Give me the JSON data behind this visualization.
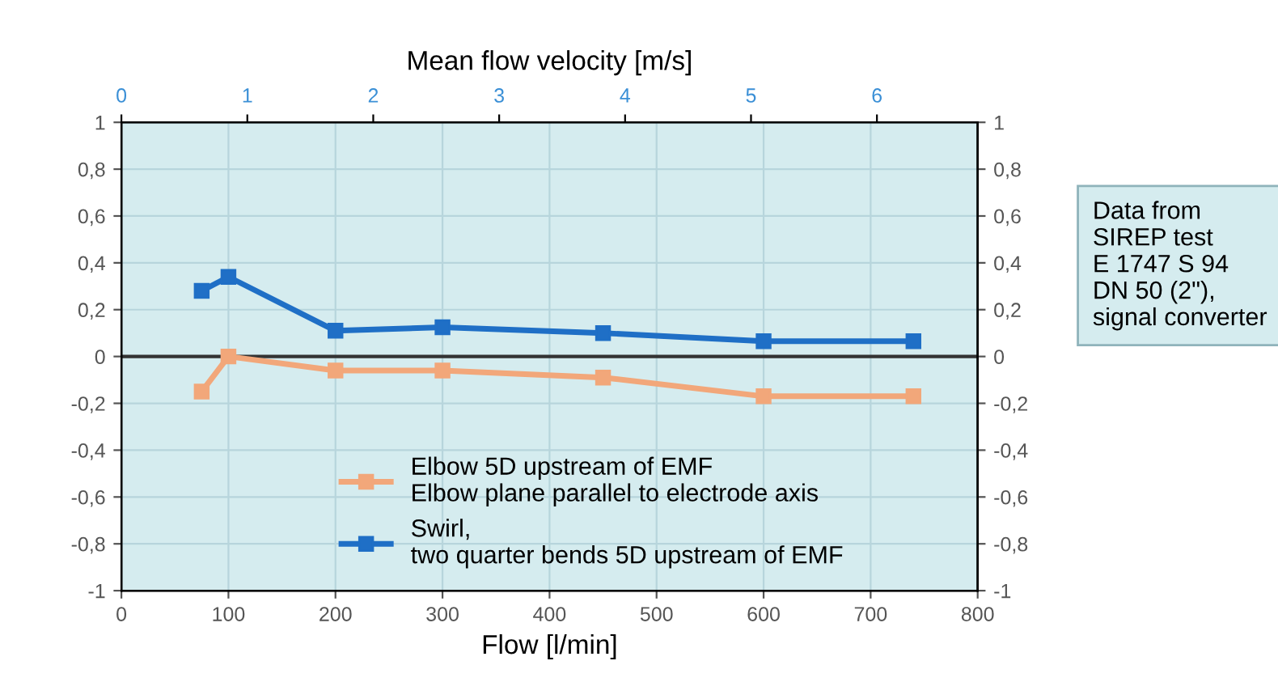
{
  "chart_data": {
    "type": "line",
    "xlabel": "Flow [l/min]",
    "x2label": "Mean flow velocity [m/s]",
    "xlim": [
      0,
      800
    ],
    "xticks": [
      0,
      100,
      200,
      300,
      400,
      500,
      600,
      700,
      800
    ],
    "x2lim": [
      0,
      6.8
    ],
    "x2ticks": [
      0,
      1,
      2,
      3,
      4,
      5,
      6
    ],
    "ylim": [
      -1,
      1
    ],
    "yticks": [
      {
        "value": -1,
        "label": "-1"
      },
      {
        "value": -0.8,
        "label": "-0,8"
      },
      {
        "value": -0.6,
        "label": "-0,6"
      },
      {
        "value": -0.4,
        "label": "-0,4"
      },
      {
        "value": -0.2,
        "label": "-0,2"
      },
      0,
      {
        "value": 0.2,
        "label": "0,2"
      },
      {
        "value": 0.4,
        "label": "0,4"
      },
      {
        "value": 0.6,
        "label": "0,6"
      },
      {
        "value": 0.8,
        "label": "0,8"
      },
      1
    ],
    "y2lim": [
      -1,
      1
    ],
    "y2ticks": [
      {
        "value": -1,
        "label": "-1"
      },
      {
        "value": -0.8,
        "label": "-0,8"
      },
      {
        "value": -0.6,
        "label": "-0,6"
      },
      {
        "value": -0.4,
        "label": "-0,4"
      },
      {
        "value": -0.2,
        "label": "-0,2"
      },
      0,
      {
        "value": 0.2,
        "label": "0,2"
      },
      {
        "value": 0.4,
        "label": "0,4"
      },
      {
        "value": 0.6,
        "label": "0,6"
      },
      {
        "value": 0.8,
        "label": "0,8"
      },
      1
    ],
    "x": [
      75,
      100,
      200,
      300,
      450,
      600,
      740
    ],
    "series": [
      {
        "name": "Elbow 5D upstream of EMF\nElbow plane parallel to electrode axis",
        "color": "#f2a77a",
        "values": [
          -0.15,
          0.0,
          -0.06,
          -0.06,
          -0.09,
          -0.17,
          -0.17
        ]
      },
      {
        "name": "Swirl,\ntwo quarter bends 5D upstream of EMF",
        "color": "#1f6fc6",
        "values": [
          0.28,
          0.34,
          0.11,
          0.125,
          0.1,
          0.065,
          0.065
        ]
      }
    ],
    "ref_lines": [
      {
        "axis": "y",
        "value": 0,
        "color": "#333333"
      }
    ],
    "annotations": [
      "Data from\nSIREP test\nE 1747 S 94\nDN 50 (2\"),\nsignal converter"
    ],
    "grid": true,
    "legend": "bottom",
    "marker": "square",
    "line_style": "solid"
  }
}
